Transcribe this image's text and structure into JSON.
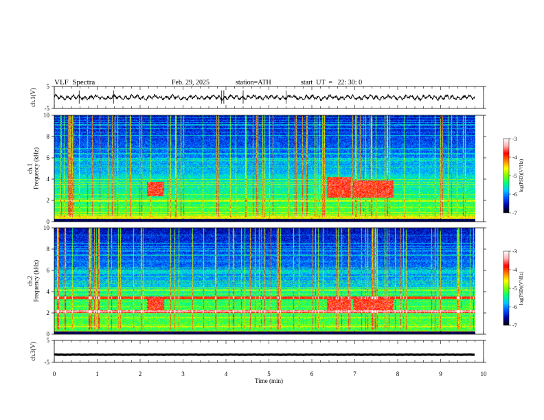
{
  "header": {
    "title": "VLF  Spectra",
    "date": "Feb. 29, 2025",
    "station": "station=ATH",
    "start_ut": "start  UT  =   22: 30: 0"
  },
  "colors": {
    "trace": "#000000",
    "colormap": [
      "#000000",
      "#0000a0",
      "#0050ff",
      "#00c8ff",
      "#00ff80",
      "#80ff00",
      "#ffff00",
      "#ff8000",
      "#ff0000",
      "#ffb0b0",
      "#ffffff"
    ]
  },
  "chart_data": [
    {
      "type": "line",
      "name": "ch1-waveform",
      "ylabel": "ch.1(V)",
      "yticks": [
        "5",
        "-5"
      ],
      "ylim": [
        -5,
        5
      ],
      "xlim": [
        0,
        10
      ],
      "mean": 0.0,
      "amplitude": 1.2
    },
    {
      "type": "heatmap",
      "name": "ch1-spectrogram",
      "ylabel": "ch.1\nFrequency  (kHz)",
      "yticks": [
        "0",
        "2",
        "4",
        "6",
        "8",
        "10"
      ],
      "ylim": [
        0,
        10
      ],
      "xlim": [
        0,
        9.8
      ],
      "events": [
        {
          "t_start": 2.15,
          "t_end": 2.55,
          "f_low": 2.4,
          "f_high": 3.8
        },
        {
          "t_start": 6.35,
          "t_end": 6.9,
          "f_low": 2.3,
          "f_high": 4.2
        },
        {
          "t_start": 6.95,
          "t_end": 7.9,
          "f_low": 2.3,
          "f_high": 3.9
        }
      ],
      "colorbar": {
        "label": "log(PSD)(V²/Hz)",
        "ticks": [
          "-3",
          "-4",
          "-5",
          "-6",
          "-7"
        ],
        "range": [
          -7,
          -3
        ]
      }
    },
    {
      "type": "heatmap",
      "name": "ch2-spectrogram",
      "ylabel": "ch.2\nFrequency  (kHz)",
      "yticks": [
        "0",
        "2",
        "4",
        "6",
        "8",
        "10"
      ],
      "ylim": [
        0,
        10
      ],
      "xlim": [
        0,
        9.8
      ],
      "events": [
        {
          "t_start": 2.15,
          "t_end": 2.55,
          "f_low": 2.2,
          "f_high": 3.6
        },
        {
          "t_start": 6.35,
          "t_end": 6.9,
          "f_low": 2.2,
          "f_high": 3.6
        },
        {
          "t_start": 6.95,
          "t_end": 7.9,
          "f_low": 2.2,
          "f_high": 3.6
        }
      ],
      "colorbar": {
        "label": "log(PSD)(V²/Hz)",
        "ticks": [
          "-3",
          "-4",
          "-5",
          "-6",
          "-7"
        ],
        "range": [
          -7,
          -3
        ]
      }
    },
    {
      "type": "line",
      "name": "ch3-waveform",
      "ylabel": "ch.3(V)",
      "yticks": [
        "5",
        "-5"
      ],
      "ylim": [
        -5,
        5
      ],
      "xlim": [
        0,
        10
      ],
      "mean": -1.5,
      "amplitude": 0.1
    }
  ],
  "xaxis": {
    "label": "Time  (min)",
    "ticks": [
      "0",
      "1",
      "2",
      "3",
      "4",
      "5",
      "6",
      "7",
      "8",
      "9",
      "10"
    ]
  }
}
